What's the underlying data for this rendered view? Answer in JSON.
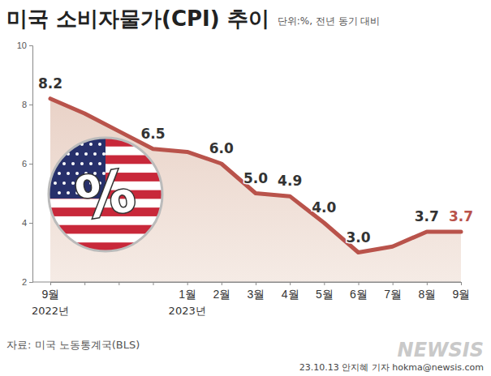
{
  "chart_data": {
    "type": "line",
    "title": "미국 소비자물가(CPI) 추이",
    "subtitle": "단위:%, 전년 동기 대비",
    "categories": [
      "9월",
      null,
      null,
      null,
      "1월",
      "2월",
      "3월",
      "4월",
      "5월",
      "6월",
      "7월",
      "8월",
      "9월"
    ],
    "x_year_labels": [
      "2022년",
      null,
      null,
      null,
      "2023년",
      null,
      null,
      null,
      null,
      null,
      null,
      null,
      null
    ],
    "values": [
      8.2,
      7.7,
      7.1,
      6.5,
      6.4,
      6.0,
      5.0,
      4.9,
      4.0,
      3.0,
      3.2,
      3.7,
      3.7
    ],
    "value_labels": [
      "8.2",
      null,
      null,
      "6.5",
      null,
      "6.0",
      "5.0",
      "4.9",
      "4.0",
      "3.0",
      null,
      "3.7",
      "3.7"
    ],
    "data_labels": true,
    "color": "#b9534b",
    "marker": "none",
    "ylim": [
      2,
      10
    ],
    "yticks": [
      2,
      4,
      6,
      8,
      10
    ],
    "grid": false,
    "icon_text": "%",
    "source": "자료: 미국 노동통계국(BLS)",
    "credit": "23.10.13 안지혜 기자 hokma@newsis.com",
    "logo": "NEWSIS"
  }
}
